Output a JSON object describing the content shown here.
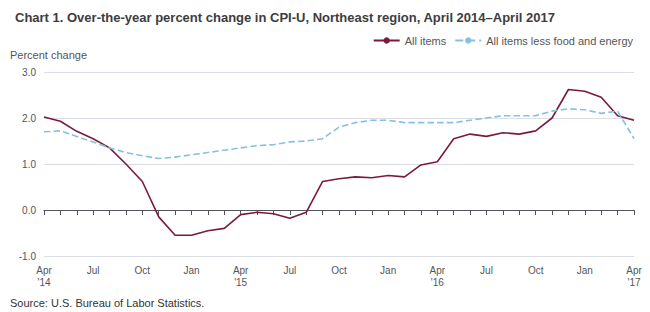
{
  "chart_data": {
    "type": "line",
    "title": "Chart 1. Over-the-year percent change in CPI-U, Northeast region, April 2014–April 2017",
    "y_label": "Percent change",
    "annotations": [
      "Source: U.S. Bureau of Labor Statistics."
    ],
    "categories": [
      "Apr\n'14",
      null,
      null,
      "Jul",
      null,
      null,
      "Oct",
      null,
      null,
      "Jan",
      null,
      null,
      "Apr\n'15",
      null,
      null,
      "Jul",
      null,
      null,
      "Oct",
      null,
      null,
      "Jan",
      null,
      null,
      "Apr\n'16",
      null,
      null,
      "Jul",
      null,
      null,
      "Oct",
      null,
      null,
      "Jan",
      null,
      null,
      "Apr\n'17"
    ],
    "series": [
      {
        "name": "All items",
        "color": "#7b1a3e",
        "line_style": "solid",
        "values": [
          2.02,
          1.93,
          1.71,
          1.55,
          1.35,
          1.0,
          0.62,
          -0.15,
          -0.55,
          -0.55,
          -0.45,
          -0.4,
          -0.1,
          -0.05,
          -0.08,
          -0.18,
          -0.05,
          0.62,
          0.68,
          0.72,
          0.7,
          0.75,
          0.72,
          0.98,
          1.05,
          1.55,
          1.65,
          1.6,
          1.68,
          1.65,
          1.72,
          2.0,
          2.62,
          2.58,
          2.45,
          2.05,
          1.95
        ]
      },
      {
        "name": "All items less food and energy",
        "color": "#85c1e0",
        "line_style": "dashed",
        "values": [
          1.7,
          1.72,
          1.6,
          1.48,
          1.35,
          1.25,
          1.18,
          1.12,
          1.15,
          1.2,
          1.25,
          1.3,
          1.35,
          1.4,
          1.42,
          1.48,
          1.5,
          1.55,
          1.8,
          1.9,
          1.95,
          1.95,
          1.9,
          1.9,
          1.9,
          1.9,
          1.95,
          2.0,
          2.05,
          2.05,
          2.05,
          2.15,
          2.2,
          2.18,
          2.1,
          2.15,
          1.55
        ]
      }
    ],
    "ylim": [
      -1.0,
      3.0
    ],
    "yticks": [
      {
        "value": -1.0,
        "label": "-1.0"
      },
      {
        "value": 0.0,
        "label": "0.0"
      },
      {
        "value": 1.0,
        "label": "1.0"
      },
      {
        "value": 2.0,
        "label": "2.0"
      },
      {
        "value": 3.0,
        "label": "3.0"
      }
    ],
    "grid": true,
    "legend": "upper right"
  }
}
